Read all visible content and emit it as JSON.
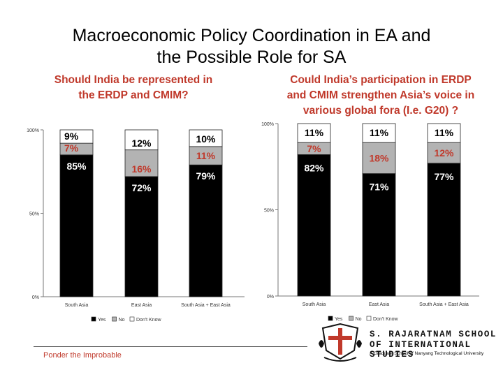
{
  "slide": {
    "title_line1": "Macroeconomic Policy Coordination in EA and",
    "title_line2": "the Possible Role for SA"
  },
  "chart_data": [
    {
      "type": "bar",
      "stacked": true,
      "title_line1": "Should India be represented in",
      "title_line2": "the ERDP and CMIM?",
      "categories": [
        "South Asia",
        "East Asia",
        "South Asia + East Asia"
      ],
      "series": [
        {
          "name": "Yes",
          "values": [
            85,
            72,
            79
          ],
          "labels": [
            "85%",
            "72%",
            "79%"
          ],
          "color": "#000000"
        },
        {
          "name": "No",
          "values": [
            7,
            16,
            11
          ],
          "labels": [
            "7%",
            "16%",
            "11%"
          ],
          "color": "#b3b3b3"
        },
        {
          "name": "Don't Know",
          "values": [
            9,
            12,
            10
          ],
          "labels": [
            "9%",
            "12%",
            "10%"
          ],
          "color": "#ffffff"
        }
      ],
      "yticks": [
        "0%",
        "50%",
        "100%"
      ],
      "ylim": [
        0,
        100
      ],
      "legend": "bottom",
      "grid": false
    },
    {
      "type": "bar",
      "stacked": true,
      "title_line1": "Could India’s participation in ERDP",
      "title_line2": "and CMIM strengthen Asia’s voice in",
      "title_line3": "various global fora (I.e. G20) ?",
      "categories": [
        "South Asia",
        "East Asia",
        "South Asia + East Asia"
      ],
      "series": [
        {
          "name": "Yes",
          "values": [
            82,
            71,
            77
          ],
          "labels": [
            "82%",
            "71%",
            "77%"
          ],
          "color": "#000000"
        },
        {
          "name": "No",
          "values": [
            7,
            18,
            12
          ],
          "labels": [
            "7%",
            "18%",
            "12%"
          ],
          "color": "#b3b3b3"
        },
        {
          "name": "Don't Know",
          "values": [
            11,
            11,
            11
          ],
          "labels": [
            "11%",
            "11%",
            "11%"
          ],
          "color": "#ffffff"
        }
      ],
      "yticks": [
        "0%",
        "50%",
        "100%"
      ],
      "ylim": [
        0,
        100
      ],
      "legend": "bottom",
      "grid": false
    }
  ],
  "footer": {
    "tagline": "Ponder the Improbable",
    "logo_line1": "S. RAJARATNAM SCHOOL",
    "logo_line2": "OF INTERNATIONAL STUDIES",
    "logo_line3": "A Graduate School of Nanyang Technological University"
  }
}
